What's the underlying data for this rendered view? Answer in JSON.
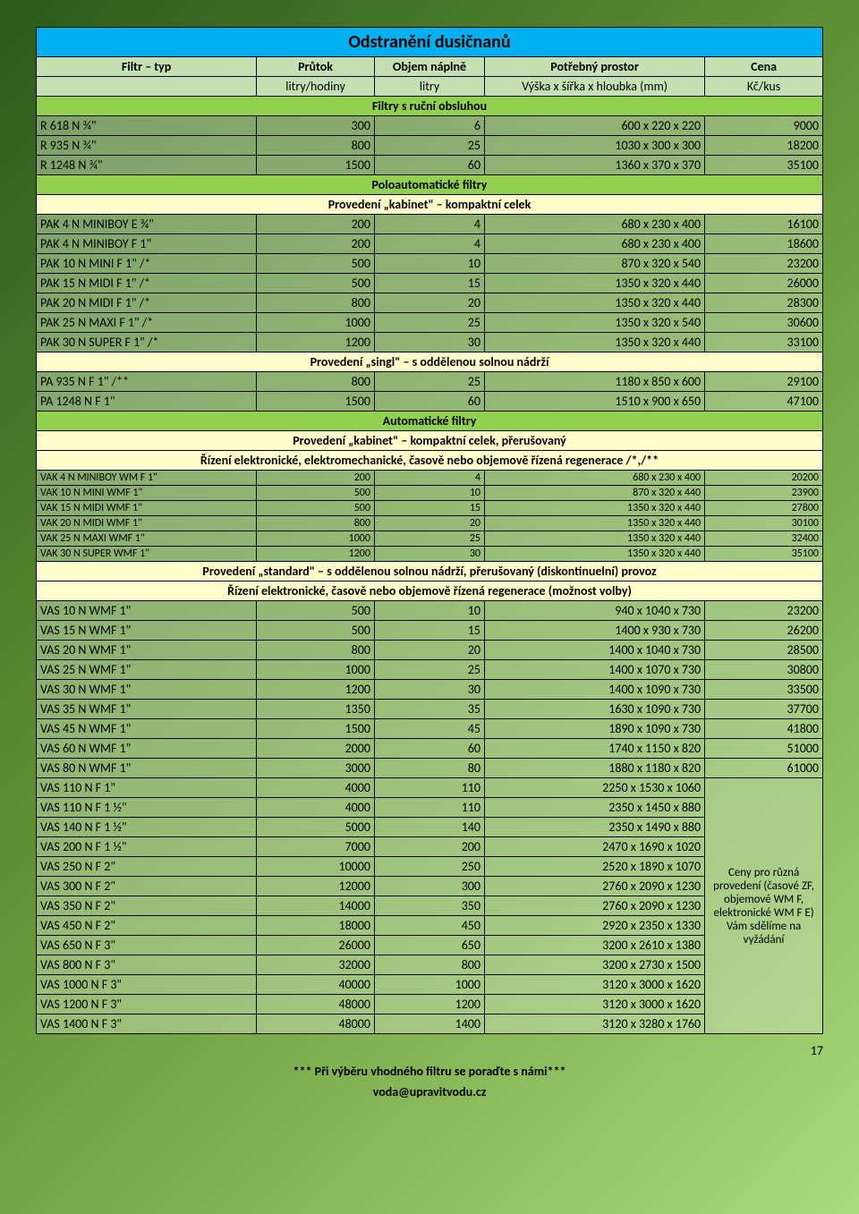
{
  "title": "Odstranění dusičnanů",
  "headers": {
    "col1a": "Filtr – typ",
    "col2a": "Průtok",
    "col3a": "Objem náplně",
    "col4a": "Potřebný prostor",
    "col5a": "Cena",
    "col2b": "litry/hodiny",
    "col3b": "litry",
    "col4b": "Výška x šířka x hloubka (mm)",
    "col5b": "Kč/kus"
  },
  "sections": {
    "s1": "Filtry s ruční obsluhou",
    "s2": "Poloautomatické filtry",
    "s2a": "Provedení „kabinet\" – kompaktní celek",
    "s2b": "Provedení „singl\" – s oddělenou solnou nádrží",
    "s3": "Automatické filtry",
    "s3a": "Provedení „kabinet\" – kompaktní celek, přerušovaný",
    "s3b": "Řízení elektronické, elektromechanické, časově nebo objemově řízená regenerace /*,/**",
    "s3c": "Provedení „standard\" – s oddělenou solnou nádrží, přerušovaný (diskontinuelní) provoz",
    "s3d": "Řízení elektronické, časově nebo objemově řízená regenerace (možnost volby)"
  },
  "group1": [
    {
      "n": "R 618 N ¾\"",
      "f": "300",
      "v": "6",
      "d": "600 x 220 x 220",
      "p": "9000"
    },
    {
      "n": "R 935 N ¾\"",
      "f": "800",
      "v": "25",
      "d": "1030 x 300 x 300",
      "p": "18200"
    },
    {
      "n": "R 1248 N ¾\"",
      "f": "1500",
      "v": "60",
      "d": "1360 x 370 x 370",
      "p": "35100"
    }
  ],
  "group2a": [
    {
      "n": "PAK 4 N MINIBOY E ¾\"",
      "f": "200",
      "v": "4",
      "d": "680 x 230 x 400",
      "p": "16100"
    },
    {
      "n": "PAK 4 N MINIBOY F 1\"",
      "f": "200",
      "v": "4",
      "d": "680 x 230 x 400",
      "p": "18600"
    },
    {
      "n": "PAK 10 N MINI F 1\" /*",
      "f": "500",
      "v": "10",
      "d": "870 x 320 x 540",
      "p": "23200"
    },
    {
      "n": "PAK 15 N MIDI F 1\" /*",
      "f": "500",
      "v": "15",
      "d": "1350 x 320 x 440",
      "p": "26000"
    },
    {
      "n": "PAK 20 N MIDI F 1\" /*",
      "f": "800",
      "v": "20",
      "d": "1350 x 320 x 440",
      "p": "28300"
    },
    {
      "n": "PAK 25 N MAXI F 1\" /*",
      "f": "1000",
      "v": "25",
      "d": "1350 x 320 x 540",
      "p": "30600"
    },
    {
      "n": "PAK 30 N SUPER F 1\" /*",
      "f": "1200",
      "v": "30",
      "d": "1350 x 320 x 440",
      "p": "33100"
    }
  ],
  "group2b": [
    {
      "n": "PA 935 N F 1\" /**",
      "f": "800",
      "v": "25",
      "d": "1180 x 850 x 600",
      "p": "29100"
    },
    {
      "n": "PA 1248 N F 1\"",
      "f": "1500",
      "v": "60",
      "d": "1510 x 900 x 650",
      "p": "47100"
    }
  ],
  "group3a": [
    {
      "n": "VAK 4 N MINIBOY WM F 1\"",
      "f": "200",
      "v": "4",
      "d": "680 x 230 x 400",
      "p": "20200"
    },
    {
      "n": "VAK 10 N MINI WMF 1\"",
      "f": "500",
      "v": "10",
      "d": "870 x 320 x 440",
      "p": "23900"
    },
    {
      "n": "VAK 15 N MIDI WMF 1\"",
      "f": "500",
      "v": "15",
      "d": "1350 x 320 x 440",
      "p": "27800"
    },
    {
      "n": "VAK 20 N MIDI WMF 1\"",
      "f": "800",
      "v": "20",
      "d": "1350 x 320 x 440",
      "p": "30100"
    },
    {
      "n": "VAK 25 N MAXI WMF 1\"",
      "f": "1000",
      "v": "25",
      "d": "1350 x 320 x 440",
      "p": "32400"
    },
    {
      "n": "VAK 30 N SUPER WMF 1\"",
      "f": "1200",
      "v": "30",
      "d": "1350 x 320 x 440",
      "p": "35100"
    }
  ],
  "group3b_priced": [
    {
      "n": "VAS 10 N WMF 1\"",
      "f": "500",
      "v": "10",
      "d": "940 x 1040 x 730",
      "p": "23200"
    },
    {
      "n": "VAS 15 N WMF 1\"",
      "f": "500",
      "v": "15",
      "d": "1400 x 930 x 730",
      "p": "26200"
    },
    {
      "n": "VAS 20 N WMF 1\"",
      "f": "800",
      "v": "20",
      "d": "1400 x 1040 x 730",
      "p": "28500"
    },
    {
      "n": "VAS 25 N WMF 1\"",
      "f": "1000",
      "v": "25",
      "d": "1400 x 1070 x 730",
      "p": "30800"
    },
    {
      "n": "VAS 30 N WMF 1\"",
      "f": "1200",
      "v": "30",
      "d": "1400 x 1090 x 730",
      "p": "33500"
    },
    {
      "n": "VAS 35 N WMF 1\"",
      "f": "1350",
      "v": "35",
      "d": "1630 x 1090 x 730",
      "p": "37700"
    },
    {
      "n": "VAS 45 N WMF 1\"",
      "f": "1500",
      "v": "45",
      "d": "1890 x 1090 x 730",
      "p": "41800"
    },
    {
      "n": "VAS 60 N WMF 1\"",
      "f": "2000",
      "v": "60",
      "d": "1740 x 1150 x 820",
      "p": "51000"
    },
    {
      "n": "VAS 80 N WMF 1\"",
      "f": "3000",
      "v": "80",
      "d": "1880 x 1180 x 820",
      "p": "61000"
    }
  ],
  "group3b_note_first": {
    "n": "VAS 110 N F 1\"",
    "f": "4000",
    "v": "110",
    "d": "2250 x 1530 x 1060"
  },
  "group3b_note_rest": [
    {
      "n": "VAS 110 N F 1 ½\"",
      "f": "4000",
      "v": "110",
      "d": "2350 x 1450 x 880"
    },
    {
      "n": "VAS 140 N F 1 ½\"",
      "f": "5000",
      "v": "140",
      "d": "2350 x 1490 x 880"
    },
    {
      "n": "VAS 200 N F 1 ½\"",
      "f": "7000",
      "v": "200",
      "d": "2470 x 1690 x 1020"
    },
    {
      "n": "VAS 250 N F 2\"",
      "f": "10000",
      "v": "250",
      "d": "2520 x 1890 x 1070"
    },
    {
      "n": "VAS 300 N F 2\"",
      "f": "12000",
      "v": "300",
      "d": "2760 x 2090 x 1230"
    },
    {
      "n": "VAS 350 N F 2\"",
      "f": "14000",
      "v": "350",
      "d": "2760 x 2090 x 1230"
    },
    {
      "n": "VAS 450 N F 2\"",
      "f": "18000",
      "v": "450",
      "d": "2920 x 2350 x 1330"
    },
    {
      "n": "VAS 650 N F 3\"",
      "f": "26000",
      "v": "650",
      "d": "3200 x 2610 x 1380"
    },
    {
      "n": "VAS 800 N F 3\"",
      "f": "32000",
      "v": "800",
      "d": "3200 x 2730 x 1500"
    },
    {
      "n": "VAS 1000 N F 3\"",
      "f": "40000",
      "v": "1000",
      "d": "3120 x 3000 x 1620"
    },
    {
      "n": "VAS 1200 N F 3\"",
      "f": "48000",
      "v": "1200",
      "d": "3120 x 3000 x 1620"
    },
    {
      "n": "VAS 1400 N F 3\"",
      "f": "48000",
      "v": "1400",
      "d": "3120 x 3280 x 1760"
    }
  ],
  "price_note": "Ceny pro různá provedení (časové ZF, objemové WM F, elektronické WM F E) Vám sdělíme na vyžádání",
  "pagenum": "17",
  "footer1": "*** Při výběru vhodného filtru se poraďte s námi***",
  "footer2": "voda@upravitvodu.cz"
}
